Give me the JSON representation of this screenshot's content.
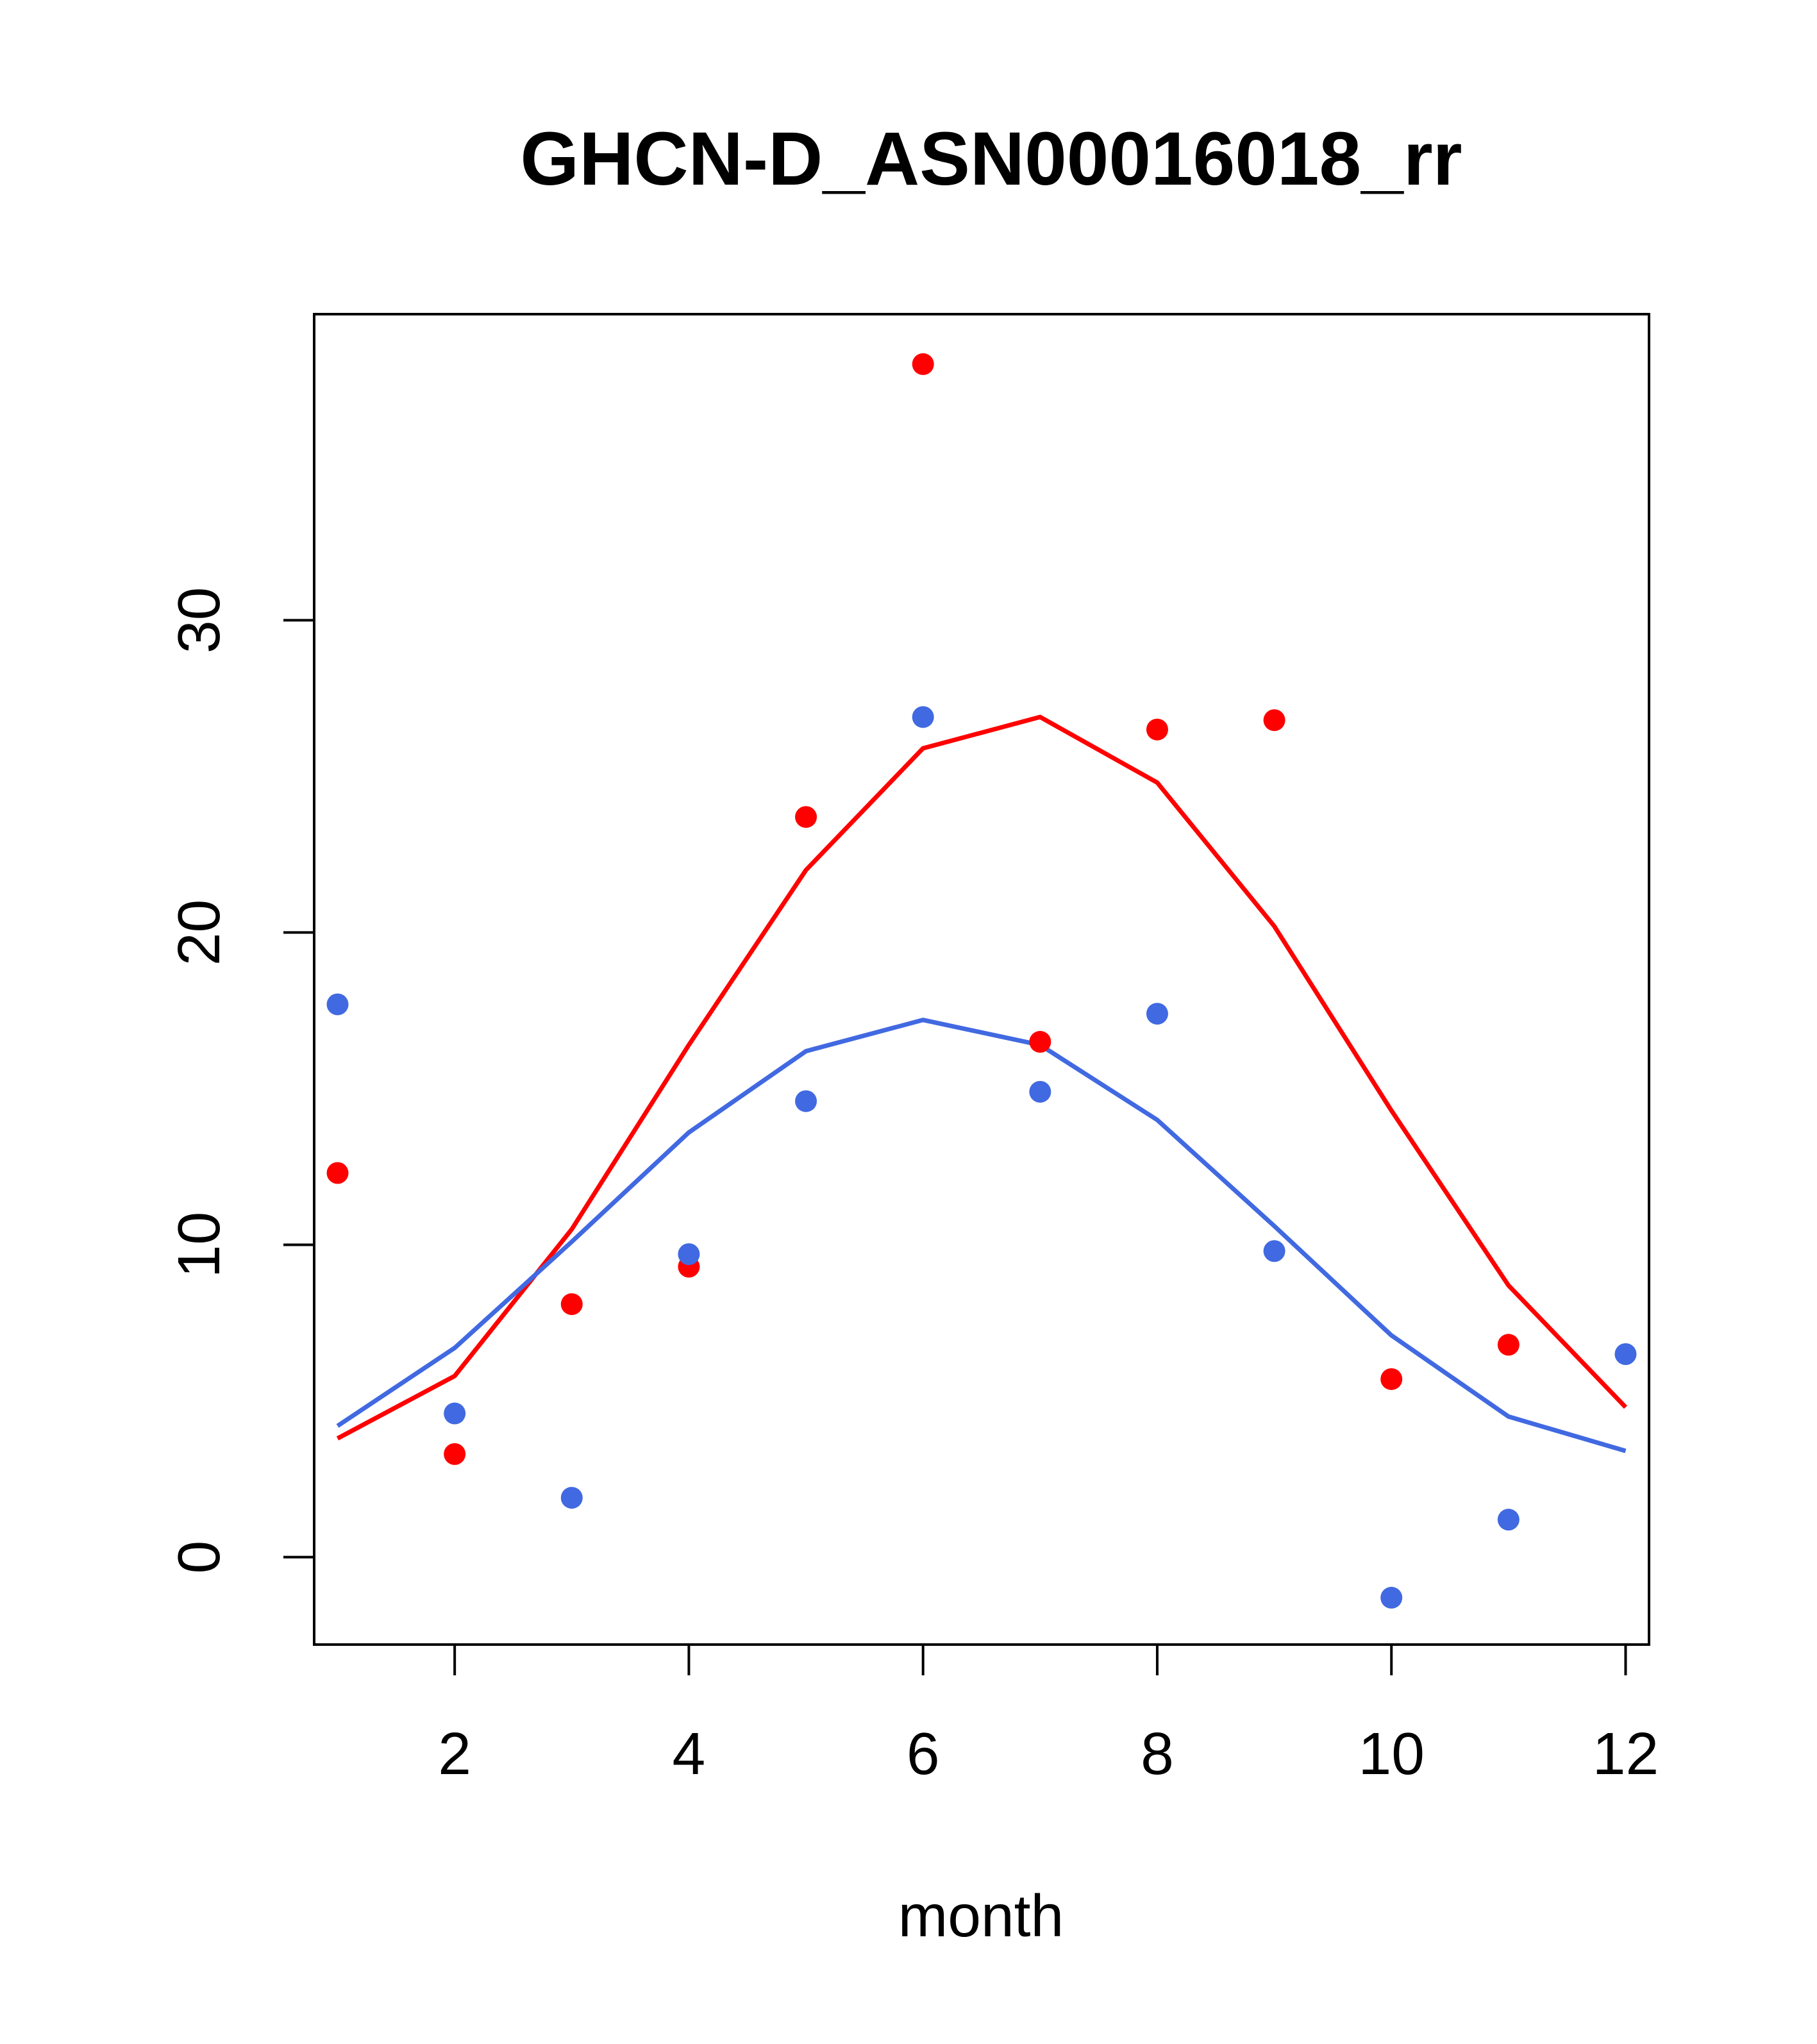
{
  "chart_data": {
    "type": "scatter",
    "title": "GHCN-D_ASN00016018_rr",
    "xlabel": "month",
    "ylabel": "",
    "xlim": [
      0.8,
      12.2
    ],
    "ylim": [
      -2.8,
      39.8
    ],
    "x_ticks": [
      2,
      4,
      6,
      8,
      10,
      12
    ],
    "y_ticks": [
      0,
      10,
      20,
      30
    ],
    "grid": false,
    "box": true,
    "series": [
      {
        "kind": "points",
        "color": "#ff0000",
        "x": [
          1,
          2,
          3,
          4,
          5,
          6,
          7,
          8,
          9,
          10,
          11,
          12
        ],
        "y": [
          12.3,
          3.3,
          8.1,
          9.3,
          23.7,
          38.2,
          16.5,
          26.5,
          26.8,
          5.7,
          6.8,
          null
        ]
      },
      {
        "kind": "points",
        "color": "#4169e1",
        "x": [
          1,
          2,
          3,
          4,
          5,
          6,
          7,
          8,
          9,
          10,
          11,
          12
        ],
        "y": [
          17.7,
          4.6,
          1.9,
          9.7,
          14.6,
          26.9,
          14.9,
          17.4,
          9.8,
          -1.3,
          1.2,
          6.5
        ]
      },
      {
        "kind": "line",
        "color": "#ff0000",
        "x": [
          1,
          2,
          3,
          4,
          5,
          6,
          7,
          8,
          9,
          10,
          11,
          12
        ],
        "y": [
          3.8,
          5.8,
          10.5,
          16.4,
          22.0,
          25.9,
          26.9,
          24.8,
          20.2,
          14.3,
          8.7,
          4.8
        ]
      },
      {
        "kind": "line",
        "color": "#4169e1",
        "x": [
          1,
          2,
          3,
          4,
          5,
          6,
          7,
          8,
          9,
          10,
          11,
          12
        ],
        "y": [
          4.2,
          6.7,
          10.1,
          13.6,
          16.2,
          17.2,
          16.4,
          14.0,
          10.6,
          7.1,
          4.5,
          3.4
        ]
      }
    ]
  }
}
